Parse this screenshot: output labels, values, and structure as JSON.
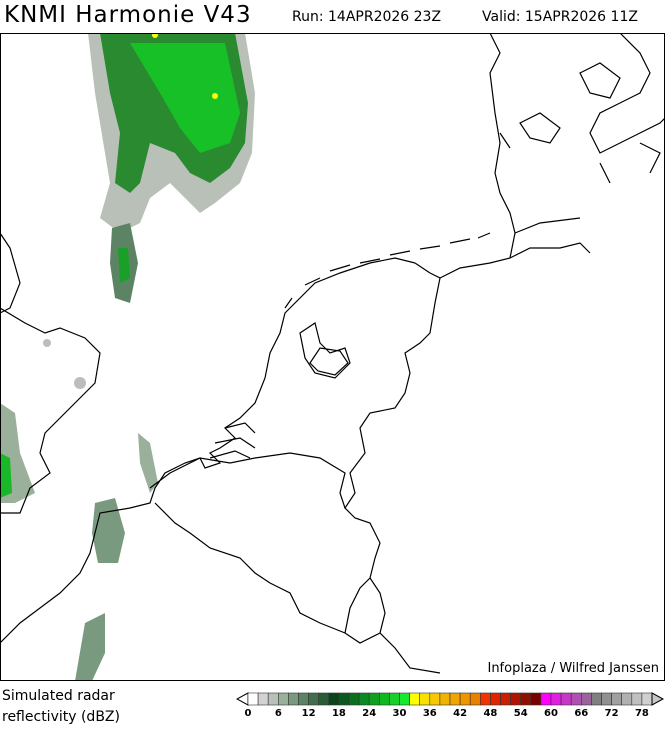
{
  "header": {
    "title": "KNMI Harmonie V43",
    "run": "Run: 14APR2026 23Z",
    "valid": "Valid: 15APR2026 11Z"
  },
  "map": {
    "region": "Netherlands and surroundings",
    "credit": "Infoplaza / Wilfred Janssen",
    "coastline_color": "#000000"
  },
  "legend": {
    "title_line1": "Simulated radar",
    "title_line2": "reflectivity (dBZ)",
    "tick_labels": [
      "0",
      "6",
      "12",
      "18",
      "24",
      "30",
      "36",
      "42",
      "48",
      "54",
      "60",
      "66",
      "72",
      "78"
    ],
    "step": 2,
    "colors": [
      "#ffffff",
      "#d2d2d2",
      "#b8c0b8",
      "#9ab09a",
      "#7a9a80",
      "#5c8464",
      "#426e4c",
      "#2a5c38",
      "#0a4418",
      "#0a5a20",
      "#0a7020",
      "#0a8a20",
      "#10a020",
      "#10b820",
      "#18d028",
      "#18e830",
      "#ffff00",
      "#f8e000",
      "#f8c800",
      "#f0b400",
      "#f0a400",
      "#f09400",
      "#e88000",
      "#f03400",
      "#e02400",
      "#c82000",
      "#b01400",
      "#901000",
      "#780000",
      "#ff00ff",
      "#e020e0",
      "#c838c8",
      "#b050b0",
      "#9a649a",
      "#808080",
      "#909090",
      "#a0a0a0",
      "#b0b0b0",
      "#c0c0c0",
      "#d0d0d0"
    ]
  }
}
